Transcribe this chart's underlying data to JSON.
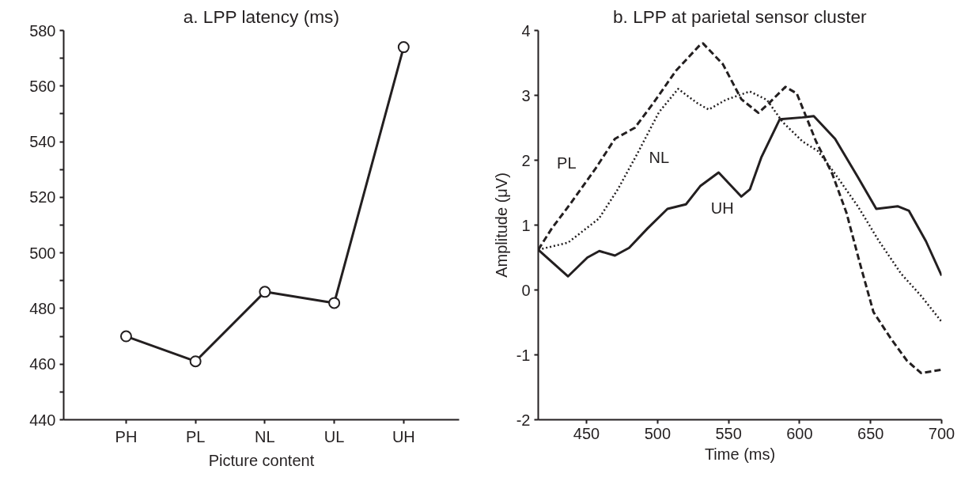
{
  "chart_data": [
    {
      "type": "line",
      "title": "a. LPP latency (ms)",
      "xlabel": "Picture content",
      "categories": [
        "PH",
        "PL",
        "NL",
        "UL",
        "UH"
      ],
      "series": [
        {
          "color": "#231f20",
          "values": [
            470,
            461,
            486,
            482,
            574
          ]
        }
      ],
      "marker": "circle",
      "line_style": "solid",
      "grid": false,
      "ylim": [
        440,
        580
      ],
      "yticks": [
        440,
        {
          "value": 450,
          "label": null
        },
        460,
        {
          "value": 470,
          "label": null
        },
        480,
        {
          "value": 490,
          "label": null
        },
        500,
        {
          "value": 510,
          "label": null
        },
        520,
        {
          "value": 530,
          "label": null
        },
        540,
        {
          "value": 550,
          "label": null
        },
        560,
        {
          "value": 570,
          "label": null
        },
        580
      ]
    },
    {
      "type": "line",
      "title": "b. LPP at parietal sensor cluster",
      "xlabel": "Time (ms)",
      "ylabel": "Amplitude (μV)",
      "grid": false,
      "marker": "none",
      "xlim": [
        416,
        700
      ],
      "xticks": [
        450,
        500,
        550,
        600,
        650,
        700
      ],
      "ylim": [
        -2,
        4
      ],
      "yticks": [
        -2,
        -1,
        0,
        1,
        2,
        3,
        4
      ],
      "series": [
        {
          "name": "UH",
          "color": "#231f20",
          "line_style": "solid",
          "x": [
            416,
            437,
            450.6,
            459,
            470,
            480,
            493,
            507,
            520,
            530,
            543,
            559,
            565,
            573,
            586,
            602,
            610,
            625,
            641,
            654,
            669,
            677,
            689,
            700
          ],
          "values": [
            0.62,
            0.21,
            0.5,
            0.6,
            0.53,
            0.65,
            0.95,
            1.25,
            1.32,
            1.6,
            1.81,
            1.44,
            1.55,
            2.04,
            2.63,
            2.66,
            2.68,
            2.33,
            1.74,
            1.25,
            1.29,
            1.22,
            0.75,
            0.22
          ]
        },
        {
          "name": "PL",
          "color": "#231f20",
          "line_style": "dashed",
          "x": [
            416,
            425.6,
            439,
            456,
            470,
            484,
            497,
            513,
            530,
            532,
            546,
            559,
            571,
            578.5,
            590,
            598,
            611.6,
            623,
            633,
            642.6,
            652,
            664,
            675.6,
            685.5,
            700
          ],
          "values": [
            0.62,
            0.95,
            1.34,
            1.86,
            2.33,
            2.5,
            2.88,
            3.38,
            3.78,
            3.8,
            3.48,
            2.94,
            2.73,
            2.88,
            3.13,
            3.03,
            2.29,
            1.79,
            1.19,
            0.4,
            -0.34,
            -0.74,
            -1.09,
            -1.28,
            -1.23
          ]
        },
        {
          "name": "NL",
          "color": "#231f20",
          "line_style": "dotted",
          "x": [
            416,
            437,
            458.7,
            472,
            485.5,
            501,
            514.5,
            528,
            536,
            548,
            565,
            577,
            588,
            602,
            613,
            625,
            641,
            656,
            671.5,
            685.5,
            700
          ],
          "values": [
            0.62,
            0.73,
            1.1,
            1.55,
            2.09,
            2.74,
            3.1,
            2.88,
            2.78,
            2.93,
            3.06,
            2.93,
            2.59,
            2.29,
            2.14,
            1.79,
            1.29,
            0.75,
            0.25,
            -0.09,
            -0.49
          ]
        }
      ]
    }
  ]
}
